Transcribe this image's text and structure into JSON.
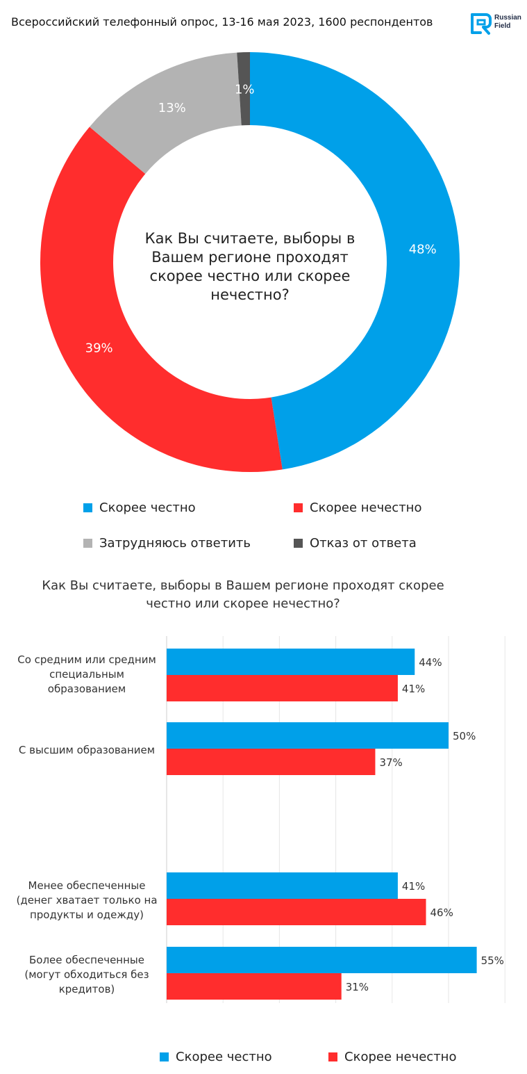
{
  "header": {
    "title": "Всероссийский телефонный опрос, 13-16 мая 2023, 1600 респондентов",
    "logo_line1": "Russian",
    "logo_line2": "Field",
    "logo_color": "#00a0e9"
  },
  "chart_data": [
    {
      "type": "pie",
      "variant": "donut",
      "title": "Как Вы считаете, выборы в Вашем регионе проходят скорее честно или скорее нечестно?",
      "categories": [
        "Скорее честно",
        "Скорее нечестно",
        "Затрудняюсь ответить",
        "Отказ от ответа"
      ],
      "values": [
        48,
        39,
        13,
        1
      ],
      "labels": [
        "48%",
        "39%",
        "13%",
        "1%"
      ],
      "colors": [
        "#00a0e9",
        "#ff2d2d",
        "#b3b3b3",
        "#555555"
      ],
      "legend": "bottom"
    },
    {
      "type": "bar",
      "orientation": "horizontal",
      "title": "Как Вы считаете, выборы в Вашем регионе проходят скорее честно или скорее нечестно?",
      "categories": [
        "Со средним или средним специальным образованием",
        "С высшим образованием",
        "Менее обеспеченные (денег хватает только на продукты и одежду)",
        "Более обеспеченные (могут обходиться без кредитов)"
      ],
      "series": [
        {
          "name": "Скорее честно",
          "values": [
            44,
            50,
            41,
            55
          ],
          "labels": [
            "44%",
            "50%",
            "41%",
            "55%"
          ],
          "color": "#00a0e9"
        },
        {
          "name": "Скорее нечестно",
          "values": [
            41,
            37,
            46,
            31
          ],
          "labels": [
            "41%",
            "37%",
            "46%",
            "31%"
          ],
          "color": "#ff2d2d"
        }
      ],
      "xlim": [
        0,
        60
      ],
      "grid": true,
      "legend": "bottom"
    }
  ]
}
